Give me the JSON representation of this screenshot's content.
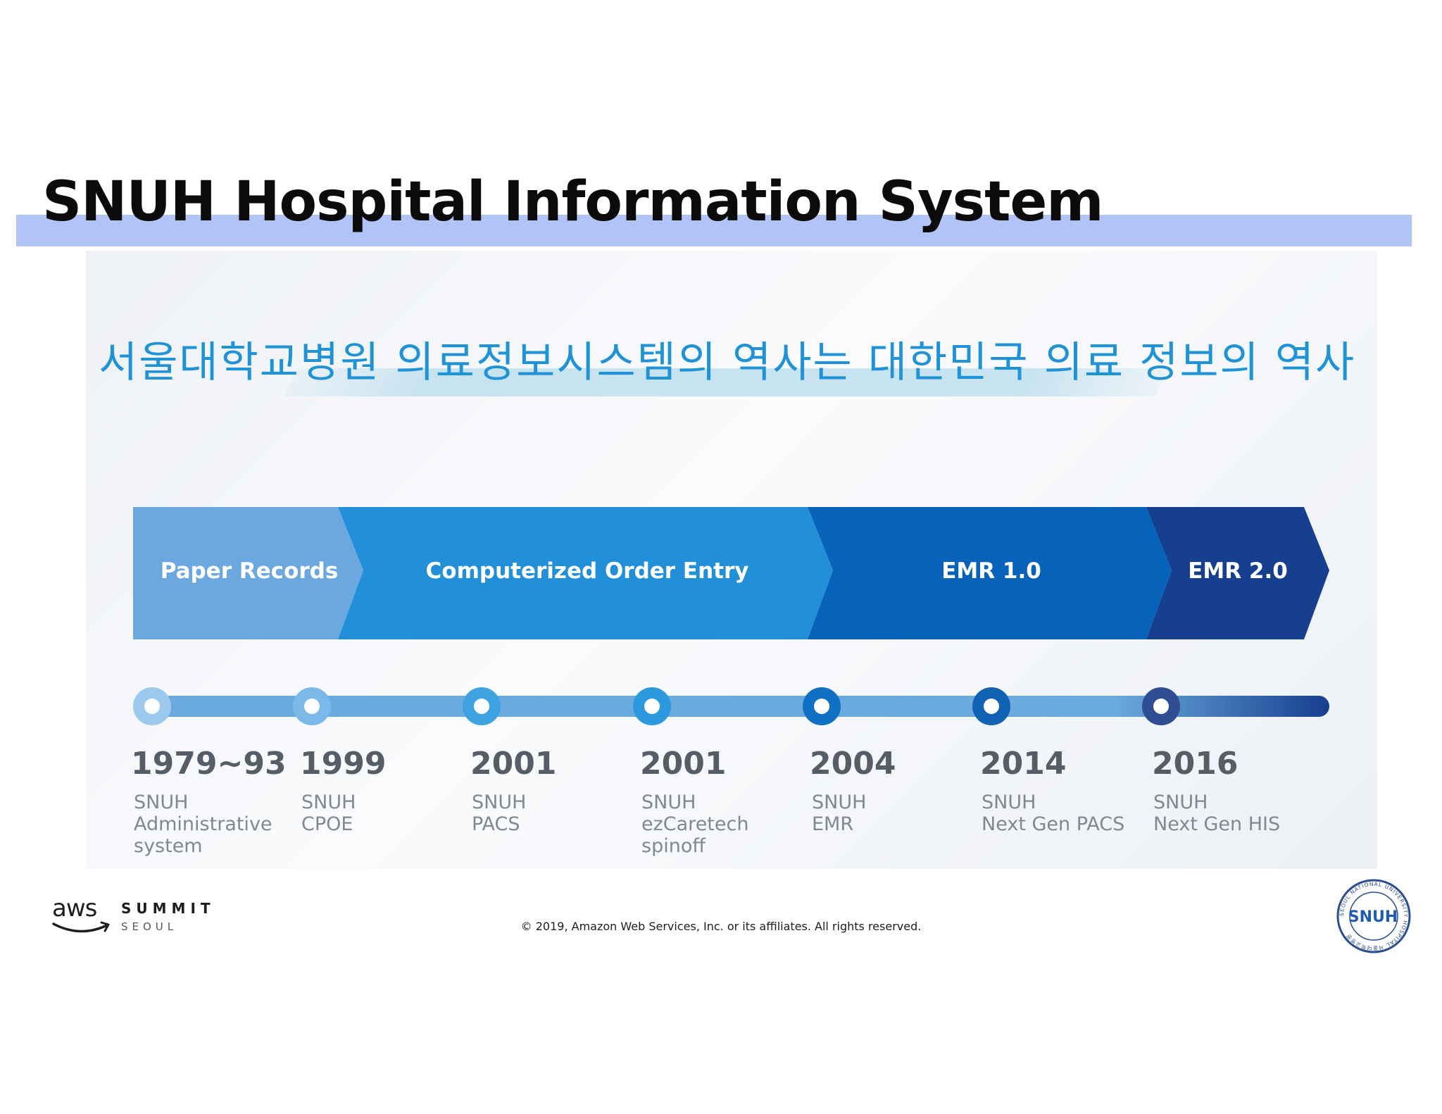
{
  "slide": {
    "title": "SNUH Hospital Information System",
    "subtitle": "서울대학교병원 의료정보시스템의 역사는 대한민국 의료 정보의 역사"
  },
  "phases": [
    {
      "label": "Paper Records",
      "color": "#6ca8e0"
    },
    {
      "label": "Computerized Order Entry",
      "color": "#2290d8"
    },
    {
      "label": "EMR 1.0",
      "color": "#0663b9"
    },
    {
      "label": "EMR 2.0",
      "color": "#173f8f"
    }
  ],
  "timeline": {
    "track_color": "#6aaade",
    "end_color": "#173f8f",
    "milestones": [
      {
        "year": "1979~93",
        "description": "SNUH\nAdministrative\nsystem",
        "marker_color": "#9cc9ee"
      },
      {
        "year": "1999",
        "description": "SNUH\nCPOE",
        "marker_color": "#7ab9ea"
      },
      {
        "year": "2001",
        "description": "SNUH\nPACS",
        "marker_color": "#3fa3e2"
      },
      {
        "year": "2001",
        "description": "SNUH\nezCaretech\nspinoff",
        "marker_color": "#2c98dd"
      },
      {
        "year": "2004",
        "description": "SNUH\nEMR",
        "marker_color": "#1070c4"
      },
      {
        "year": "2014",
        "description": "SNUH\nNext Gen PACS",
        "marker_color": "#1262b3"
      },
      {
        "year": "2016",
        "description": "SNUH\nNext Gen HIS",
        "marker_color": "#2f4d93"
      }
    ]
  },
  "footer": {
    "aws_logo_text": "aws",
    "event_name": "SUMMIT",
    "event_city": "SEOUL",
    "copyright": "© 2019, Amazon Web Services, Inc. or its affiliates. All rights reserved.",
    "seal_icon": "snuh-seal-icon",
    "seal_text": "SNUH",
    "seal_ring_text": "SEOUL NATIONAL UNIVERSITY HOSPITAL 서울대학교병원"
  }
}
